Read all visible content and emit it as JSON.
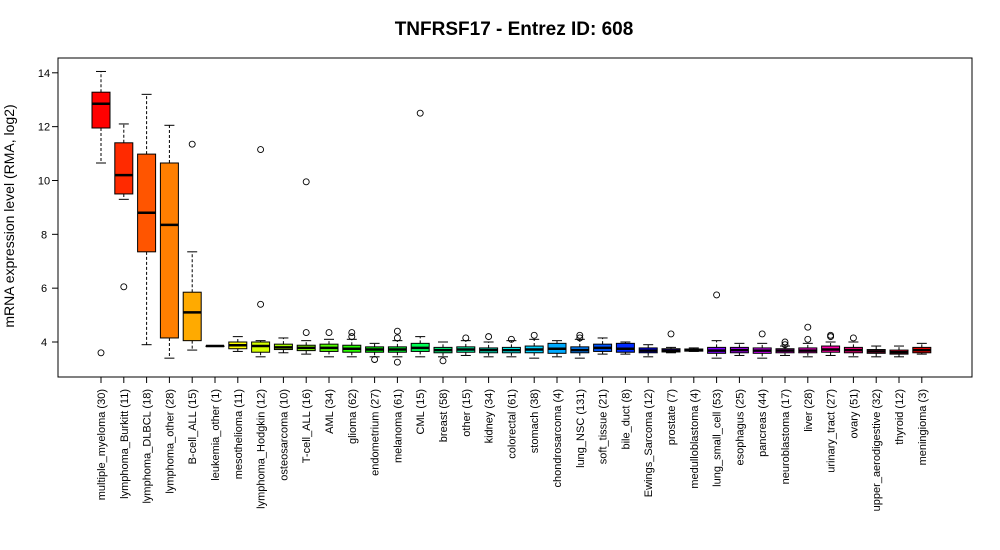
{
  "chart_data": {
    "type": "boxplot",
    "title": "TNFRSF17  -  Entrez ID: 608",
    "xlabel": "",
    "ylabel": "mRNA expression level (RMA, log2)",
    "ylim": [
      2.7,
      14.55
    ],
    "yticks": [
      4,
      6,
      8,
      10,
      12,
      14
    ],
    "grid": false,
    "categories": [
      "multiple_myeloma (30)",
      "lymphoma_Burkitt (11)",
      "lymphoma_DLBCL (18)",
      "lymphoma_other (28)",
      "B-cell_ALL (15)",
      "leukemia_other (1)",
      "mesothelioma (11)",
      "lymphoma_Hodgkin (12)",
      "osteosarcoma (10)",
      "T-cell_ALL (16)",
      "AML (34)",
      "glioma (62)",
      "endometrium (27)",
      "melanoma (61)",
      "CML (15)",
      "breast (58)",
      "other (15)",
      "kidney (34)",
      "colorectal (61)",
      "stomach (38)",
      "chondrosarcoma (4)",
      "lung_NSC (131)",
      "soft_tissue (21)",
      "bile_duct (8)",
      "Ewings_Sarcoma (12)",
      "prostate (7)",
      "medulloblastoma (4)",
      "lung_small_cell (53)",
      "esophagus (25)",
      "pancreas (44)",
      "neuroblastoma (17)",
      "liver (28)",
      "urinary_tract (27)",
      "ovary (51)",
      "upper_aerodigestive (32)",
      "thyroid (12)",
      "meningioma (3)"
    ],
    "colors": [
      "#FF0000",
      "#FF2A00",
      "#FF5500",
      "#FF7F00",
      "#FFAA00",
      "#FFD400",
      "#FFFF00",
      "#D4FF00",
      "#AAFF00",
      "#80FF00",
      "#55FF00",
      "#2AFF00",
      "#00FF00",
      "#00FF2A",
      "#00FF55",
      "#00FF80",
      "#00FFAA",
      "#00FFD4",
      "#00FFFF",
      "#00D4FF",
      "#00AAFF",
      "#0080FF",
      "#0055FF",
      "#002AFF",
      "#0000FF",
      "#2A00FF",
      "#5500FF",
      "#8000FF",
      "#AA00FF",
      "#D400FF",
      "#FF00FF",
      "#FF00D4",
      "#FF00AA",
      "#FF0080",
      "#FF0055",
      "#FF002A",
      "#FF0000"
    ],
    "series": [
      {
        "min": 10.65,
        "q1": 11.95,
        "median": 12.85,
        "q3": 13.28,
        "max": 14.05,
        "outliers": [
          3.6
        ]
      },
      {
        "min": 9.3,
        "q1": 9.5,
        "median": 10.2,
        "q3": 11.4,
        "max": 12.1,
        "outliers": [
          6.05
        ]
      },
      {
        "min": 3.9,
        "q1": 7.35,
        "median": 8.8,
        "q3": 10.98,
        "max": 13.2,
        "outliers": []
      },
      {
        "min": 3.4,
        "q1": 4.15,
        "median": 8.35,
        "q3": 10.65,
        "max": 12.05,
        "outliers": []
      },
      {
        "min": 3.7,
        "q1": 4.05,
        "median": 5.1,
        "q3": 5.85,
        "max": 7.35,
        "outliers": [
          11.35
        ]
      },
      {
        "min": 3.85,
        "q1": 3.85,
        "median": 3.85,
        "q3": 3.85,
        "max": 3.85,
        "outliers": []
      },
      {
        "min": 3.65,
        "q1": 3.75,
        "median": 3.88,
        "q3": 4.0,
        "max": 4.2,
        "outliers": []
      },
      {
        "min": 3.45,
        "q1": 3.62,
        "median": 3.85,
        "q3": 4.0,
        "max": 4.05,
        "outliers": [
          11.15,
          5.4
        ]
      },
      {
        "min": 3.6,
        "q1": 3.72,
        "median": 3.8,
        "q3": 3.92,
        "max": 4.15,
        "outliers": []
      },
      {
        "min": 3.55,
        "q1": 3.68,
        "median": 3.78,
        "q3": 3.88,
        "max": 4.05,
        "outliers": [
          9.95,
          4.35
        ]
      },
      {
        "min": 3.45,
        "q1": 3.65,
        "median": 3.78,
        "q3": 3.92,
        "max": 4.1,
        "outliers": [
          4.35
        ]
      },
      {
        "min": 3.45,
        "q1": 3.62,
        "median": 3.75,
        "q3": 3.88,
        "max": 4.1,
        "outliers": [
          4.35,
          4.2
        ]
      },
      {
        "min": 3.45,
        "q1": 3.62,
        "median": 3.72,
        "q3": 3.82,
        "max": 3.95,
        "outliers": [
          3.35
        ]
      },
      {
        "min": 3.45,
        "q1": 3.62,
        "median": 3.72,
        "q3": 3.82,
        "max": 4.05,
        "outliers": [
          4.4,
          4.15,
          3.25
        ]
      },
      {
        "min": 3.45,
        "q1": 3.65,
        "median": 3.78,
        "q3": 3.95,
        "max": 4.2,
        "outliers": [
          12.5
        ]
      },
      {
        "min": 3.45,
        "q1": 3.6,
        "median": 3.7,
        "q3": 3.8,
        "max": 4.0,
        "outliers": [
          3.3
        ]
      },
      {
        "min": 3.5,
        "q1": 3.62,
        "median": 3.72,
        "q3": 3.82,
        "max": 4.05,
        "outliers": [
          4.15
        ]
      },
      {
        "min": 3.45,
        "q1": 3.6,
        "median": 3.7,
        "q3": 3.78,
        "max": 4.0,
        "outliers": [
          4.2
        ]
      },
      {
        "min": 3.45,
        "q1": 3.6,
        "median": 3.7,
        "q3": 3.8,
        "max": 4.05,
        "outliers": [
          4.1
        ]
      },
      {
        "min": 3.4,
        "q1": 3.6,
        "median": 3.72,
        "q3": 3.85,
        "max": 4.1,
        "outliers": [
          4.25
        ]
      },
      {
        "min": 3.45,
        "q1": 3.58,
        "median": 3.75,
        "q3": 3.95,
        "max": 4.05,
        "outliers": []
      },
      {
        "min": 3.4,
        "q1": 3.6,
        "median": 3.7,
        "q3": 3.82,
        "max": 4.1,
        "outliers": [
          4.25,
          4.15
        ]
      },
      {
        "min": 3.55,
        "q1": 3.65,
        "median": 3.78,
        "q3": 3.92,
        "max": 4.15,
        "outliers": []
      },
      {
        "min": 3.55,
        "q1": 3.62,
        "median": 3.75,
        "q3": 3.95,
        "max": 4.0,
        "outliers": []
      },
      {
        "min": 3.45,
        "q1": 3.6,
        "median": 3.68,
        "q3": 3.78,
        "max": 3.9,
        "outliers": []
      },
      {
        "min": 3.6,
        "q1": 3.63,
        "median": 3.68,
        "q3": 3.75,
        "max": 3.8,
        "outliers": [
          4.3
        ]
      },
      {
        "min": 3.65,
        "q1": 3.66,
        "median": 3.7,
        "q3": 3.74,
        "max": 3.78,
        "outliers": []
      },
      {
        "min": 3.4,
        "q1": 3.58,
        "median": 3.68,
        "q3": 3.8,
        "max": 4.05,
        "outliers": [
          5.75
        ]
      },
      {
        "min": 3.5,
        "q1": 3.6,
        "median": 3.7,
        "q3": 3.8,
        "max": 3.95,
        "outliers": []
      },
      {
        "min": 3.4,
        "q1": 3.58,
        "median": 3.68,
        "q3": 3.78,
        "max": 3.95,
        "outliers": [
          4.3
        ]
      },
      {
        "min": 3.5,
        "q1": 3.6,
        "median": 3.68,
        "q3": 3.75,
        "max": 3.85,
        "outliers": [
          4.0,
          3.9
        ]
      },
      {
        "min": 3.45,
        "q1": 3.6,
        "median": 3.68,
        "q3": 3.78,
        "max": 3.95,
        "outliers": [
          4.55,
          4.1
        ]
      },
      {
        "min": 3.5,
        "q1": 3.62,
        "median": 3.72,
        "q3": 3.85,
        "max": 4.0,
        "outliers": [
          4.25,
          4.2
        ]
      },
      {
        "min": 3.45,
        "q1": 3.6,
        "median": 3.7,
        "q3": 3.8,
        "max": 4.0,
        "outliers": [
          4.15
        ]
      },
      {
        "min": 3.45,
        "q1": 3.58,
        "median": 3.65,
        "q3": 3.72,
        "max": 3.85,
        "outliers": []
      },
      {
        "min": 3.45,
        "q1": 3.55,
        "median": 3.62,
        "q3": 3.7,
        "max": 3.85,
        "outliers": []
      },
      {
        "min": 3.55,
        "q1": 3.6,
        "median": 3.7,
        "q3": 3.8,
        "max": 3.95,
        "outliers": []
      }
    ]
  }
}
